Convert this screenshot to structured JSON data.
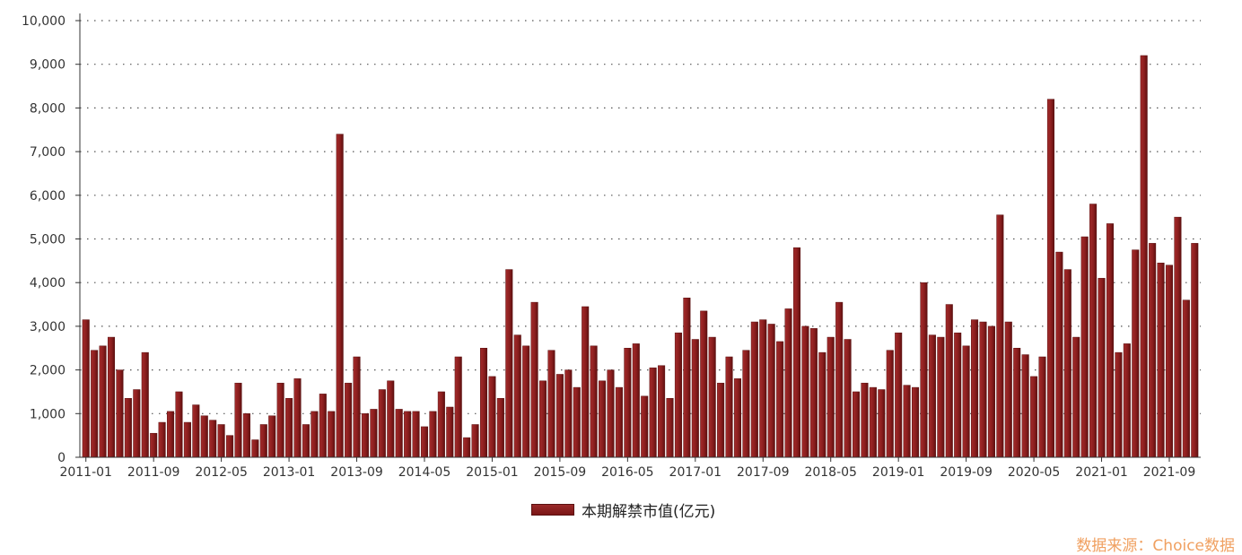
{
  "chart_data": {
    "type": "bar",
    "ylim": [
      0,
      10000
    ],
    "yticks": [
      0,
      1000,
      2000,
      3000,
      4000,
      5000,
      6000,
      7000,
      8000,
      9000,
      10000
    ],
    "ytick_labels": [
      "0",
      "1,000",
      "2,000",
      "3,000",
      "4,000",
      "5,000",
      "6,000",
      "7,000",
      "8,000",
      "9,000",
      "10,000"
    ],
    "xtick_labels": [
      "2011-01",
      "2011-09",
      "2012-05",
      "2013-01",
      "2013-09",
      "2014-05",
      "2015-01",
      "2015-09",
      "2016-05",
      "2017-01",
      "2017-09",
      "2018-05",
      "2019-01",
      "2019-09",
      "2020-05",
      "2021-01",
      "2021-09"
    ],
    "grid": true,
    "legend_position": "bottom",
    "bar_color": "#8b1e1e",
    "series": [
      {
        "name": "本期解禁市值(亿元)",
        "start": "2011-01",
        "values": [
          3150,
          2450,
          2550,
          2750,
          2000,
          1350,
          1550,
          2400,
          550,
          800,
          1050,
          1500,
          800,
          1200,
          950,
          850,
          750,
          500,
          1700,
          1000,
          400,
          750,
          950,
          1700,
          1350,
          1800,
          750,
          1050,
          1450,
          1050,
          7400,
          1700,
          2300,
          1000,
          1100,
          1550,
          1750,
          1100,
          1050,
          1050,
          700,
          1050,
          1500,
          1150,
          2300,
          450,
          750,
          2500,
          1850,
          1350,
          4300,
          2800,
          2550,
          3550,
          1750,
          2450,
          1900,
          2000,
          1600,
          3450,
          2550,
          1750,
          2000,
          1600,
          2500,
          2600,
          1400,
          2050,
          2100,
          1350,
          2850,
          3650,
          2700,
          3350,
          2750,
          1700,
          2300,
          1800,
          2450,
          3100,
          3150,
          3050,
          2650,
          3400,
          4800,
          3000,
          2950,
          2400,
          2750,
          3550,
          2700,
          1500,
          1700,
          1600,
          1550,
          2450,
          2850,
          1650,
          1600,
          4000,
          2800,
          2750,
          3500,
          2850,
          2550,
          3150,
          3100,
          3000,
          5550,
          3100,
          2500,
          2350,
          1850,
          2300,
          8200,
          4700,
          4300,
          2750,
          5050,
          5800,
          4100,
          5350,
          2400,
          2600,
          4750,
          9200,
          4900,
          4450,
          4400,
          5500,
          3600,
          4900
        ]
      }
    ],
    "source_note": "数据来源：Choice数据"
  }
}
